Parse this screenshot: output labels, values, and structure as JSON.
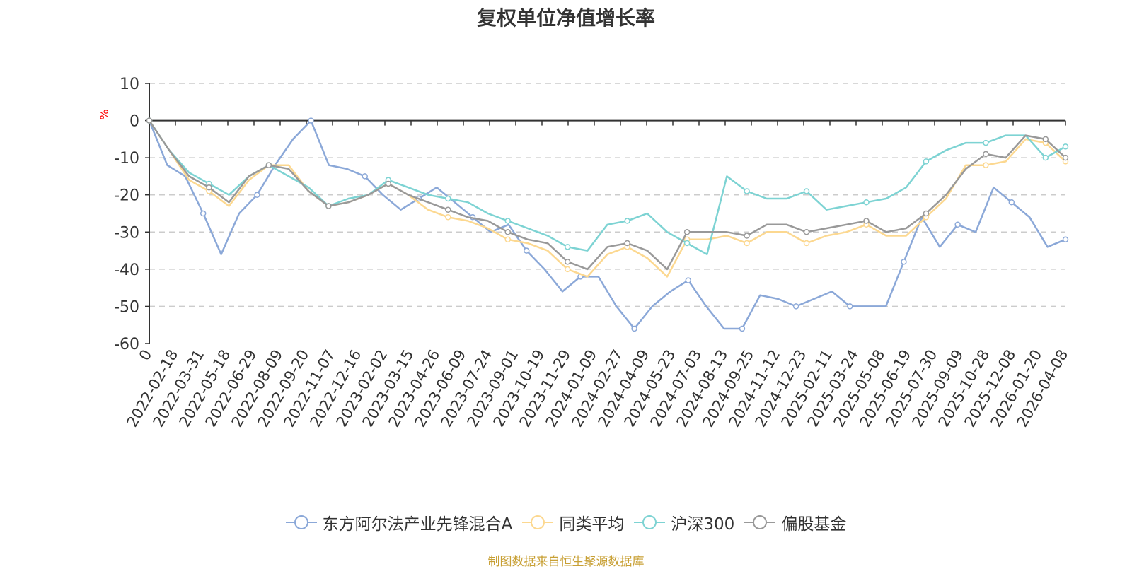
{
  "chart_data": {
    "type": "line",
    "title": "复权单位净值增长率",
    "ylabel": "%",
    "xlabel": "",
    "ylim": [
      -60,
      10
    ],
    "yticks": [
      10,
      0,
      -10,
      -20,
      -30,
      -40,
      -50,
      -60
    ],
    "x_tick_labels": [
      "0",
      "2022-02-18",
      "2022-03-31",
      "2022-05-18",
      "2022-06-29",
      "2022-08-09",
      "2022-09-20",
      "2022-11-07",
      "2022-12-16",
      "2023-02-02",
      "2023-03-15",
      "2023-04-26",
      "2023-06-09",
      "2023-07-24",
      "2023-09-01",
      "2023-10-19",
      "2023-11-29",
      "2024-01-09",
      "2024-02-27",
      "2024-04-09",
      "2024-05-23",
      "2024-07-03",
      "2024-08-13",
      "2024-09-25",
      "2024-11-12",
      "2024-12-23",
      "2025-02-11",
      "2025-03-24",
      "2025-05-08",
      "2025-06-19",
      "2025-07-30",
      "2025-09-09",
      "2025-10-28",
      "2025-12-08",
      "2026-01-20",
      "2026-04-08"
    ],
    "grid": "dashed-horizontal",
    "legend_position": "bottom",
    "series": [
      {
        "name": "东方阿尔法产业先锋混合A",
        "color": "#8ba8d8",
        "values": [
          0,
          -12,
          -15,
          -25,
          -36,
          -25,
          -20,
          -12,
          -5,
          0,
          -12,
          -13,
          -15,
          -20,
          -24,
          -21,
          -18,
          -22,
          -26,
          -30,
          -28,
          -35,
          -40,
          -46,
          -42,
          -42,
          -50,
          -56,
          -50,
          -46,
          -43,
          -50,
          -56,
          -56,
          -47,
          -48,
          -50,
          -48,
          -46,
          -50,
          -50,
          -50,
          -38,
          -26,
          -34,
          -28,
          -30,
          -18,
          -22,
          -26,
          -34,
          -32
        ]
      },
      {
        "name": "同类平均",
        "color": "#fcd890",
        "values": [
          0,
          -8,
          -16,
          -19,
          -23,
          -16,
          -12,
          -12,
          -19,
          -23,
          -22,
          -20,
          -17,
          -20,
          -24,
          -26,
          -27,
          -29,
          -32,
          -33,
          -35,
          -40,
          -42,
          -36,
          -34,
          -37,
          -42,
          -32,
          -32,
          -31,
          -33,
          -30,
          -30,
          -33,
          -31,
          -30,
          -28,
          -31,
          -31,
          -26,
          -21,
          -12,
          -12,
          -11,
          -5,
          -6,
          -11
        ]
      },
      {
        "name": "沪深300",
        "color": "#7dd3d3",
        "values": [
          0,
          -8,
          -14,
          -17,
          -20,
          -15,
          -12,
          -15,
          -18,
          -23,
          -21,
          -20,
          -16,
          -18,
          -20,
          -21,
          -22,
          -25,
          -27,
          -29,
          -31,
          -34,
          -35,
          -28,
          -27,
          -25,
          -30,
          -33,
          -36,
          -15,
          -19,
          -21,
          -21,
          -19,
          -24,
          -23,
          -22,
          -21,
          -18,
          -11,
          -8,
          -6,
          -6,
          -4,
          -4,
          -10,
          -7
        ]
      },
      {
        "name": "偏股基金",
        "color": "#999999",
        "values": [
          0,
          -8,
          -15,
          -18,
          -22,
          -15,
          -12,
          -13,
          -19,
          -23,
          -22,
          -20,
          -17,
          -20,
          -22,
          -24,
          -26,
          -27,
          -30,
          -32,
          -33,
          -38,
          -40,
          -34,
          -33,
          -35,
          -40,
          -30,
          -30,
          -30,
          -31,
          -28,
          -28,
          -30,
          -29,
          -28,
          -27,
          -30,
          -29,
          -25,
          -20,
          -13,
          -9,
          -10,
          -4,
          -5,
          -10
        ]
      }
    ]
  },
  "legend": {
    "items": [
      "东方阿尔法产业先锋混合A",
      "同类平均",
      "沪深300",
      "偏股基金"
    ]
  },
  "source": "制图数据来自恒生聚源数据库"
}
